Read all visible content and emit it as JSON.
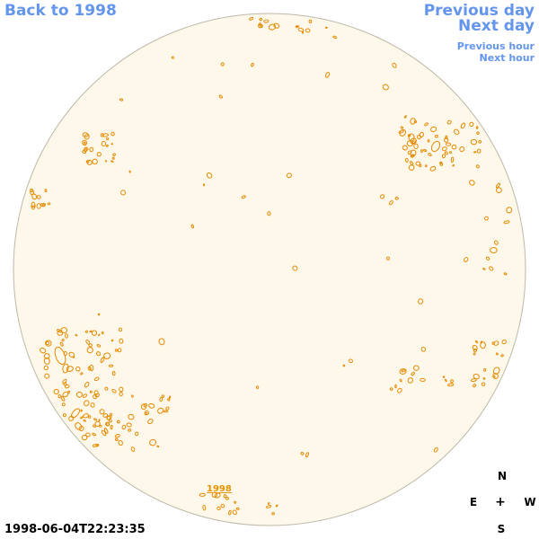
{
  "nav": {
    "back_label": "Back to 1998",
    "previous_day_label": "Previous day",
    "next_day_label": "Next day",
    "previous_hour_label": "Previous hour",
    "next_hour_label": "Next hour"
  },
  "compass": {
    "north": "N",
    "east": "E",
    "center": "+",
    "west": "W",
    "south": "S"
  },
  "timestamp": "1998-06-04T22:23:35",
  "year_label": "1998",
  "colors": {
    "link": "#6495ed",
    "disk_fill": "#fdf8ea",
    "disk_border": "#bfb8a8",
    "contour": "#e68a00",
    "year_label": "#e69500"
  }
}
